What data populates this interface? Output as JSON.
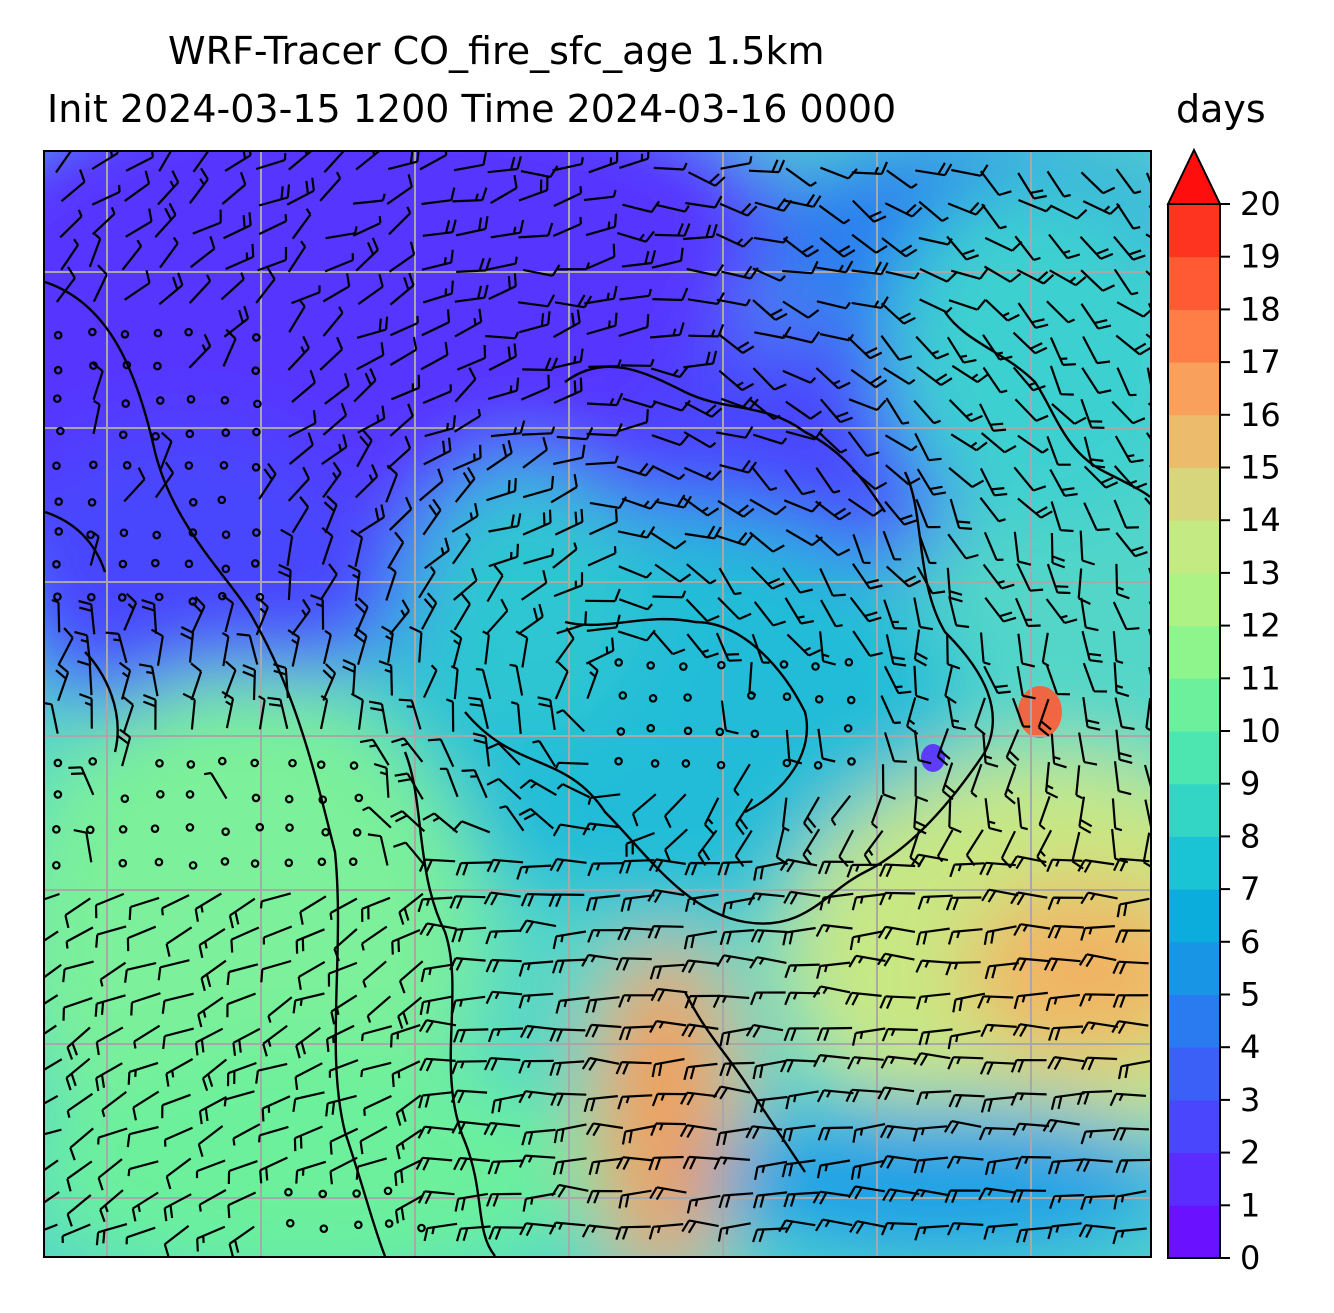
{
  "title": {
    "line1": "WRF-Tracer CO_fire_sfc_age 1.5km",
    "line2": "Init 2024-03-15 1200 Time 2024-03-16 0000",
    "units": "days"
  },
  "colorbar": {
    "min": 0,
    "max": 20,
    "extend": "max",
    "ticks": [
      "0",
      "1",
      "2",
      "3",
      "4",
      "5",
      "6",
      "7",
      "8",
      "9",
      "10",
      "11",
      "12",
      "13",
      "14",
      "15",
      "16",
      "17",
      "18",
      "19",
      "20"
    ],
    "colors": [
      "#6a12ff",
      "#5a2cff",
      "#4a46fd",
      "#3a60f8",
      "#2a7af0",
      "#1995e6",
      "#0aaddc",
      "#1bc4d4",
      "#33d6c4",
      "#4ee6b0",
      "#6cf09c",
      "#8ef48c",
      "#acf284",
      "#c4ea84",
      "#d8d67c",
      "#ecbc6c",
      "#f8a05c",
      "#ff7e48",
      "#ff5a34",
      "#ff3420"
    ],
    "extend_color": "#ff0e0e"
  },
  "map": {
    "fields": "CO_fire_sfc_age shaded, wind barbs, coastlines, lat/lon gridlines",
    "gridlines": "on",
    "gridline_color": "#a8a8a8"
  }
}
